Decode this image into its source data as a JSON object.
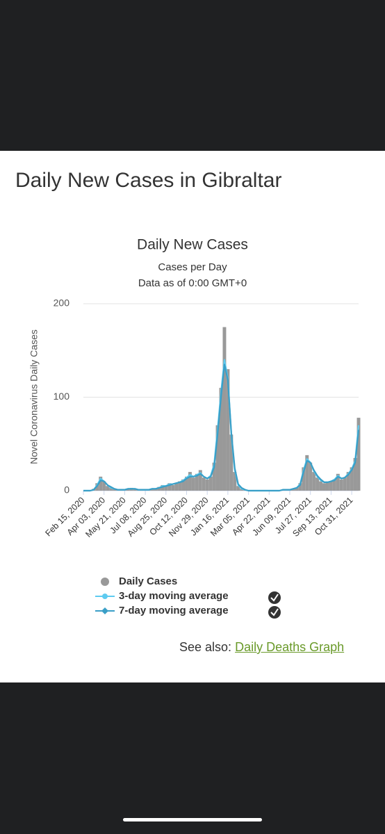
{
  "page": {
    "heading": "Daily New Cases in Gibraltar",
    "see_also": "See also:",
    "link": "Daily Deaths Graph"
  },
  "chart_data": {
    "type": "line",
    "title": "Daily New Cases",
    "subtitle": [
      "Cases per Day",
      "Data as of 0:00 GMT+0"
    ],
    "y_label": "Novel Coronavirus Daily Cases",
    "categories": [
      "Feb 15, 2020",
      null,
      null,
      null,
      null,
      null,
      "Apr 03, 2020",
      null,
      null,
      null,
      null,
      null,
      "May 21, 2020",
      null,
      null,
      null,
      null,
      null,
      "Jul 08, 2020",
      null,
      null,
      null,
      null,
      null,
      "Aug 25, 2020",
      null,
      null,
      null,
      null,
      null,
      "Oct 12, 2020",
      null,
      null,
      null,
      null,
      null,
      "Nov 29, 2020",
      null,
      null,
      null,
      null,
      null,
      "Jan 16, 2021",
      null,
      null,
      null,
      null,
      null,
      "Mar 05, 2021",
      null,
      null,
      null,
      null,
      null,
      "Apr 22, 2021",
      null,
      null,
      null,
      null,
      null,
      "Jun 09, 2021",
      null,
      null,
      null,
      null,
      null,
      "Jul 27, 2021",
      null,
      null,
      null,
      null,
      null,
      "Sep 13, 2021",
      null,
      null,
      null,
      null,
      null,
      "Oct 31, 2021",
      null,
      null
    ],
    "series": [
      {
        "name": "Daily Cases",
        "kind": "bar",
        "color": "#999999",
        "values": [
          0,
          0,
          0,
          2,
          8,
          15,
          10,
          5,
          3,
          2,
          1,
          1,
          1,
          2,
          3,
          2,
          1,
          1,
          1,
          1,
          2,
          2,
          4,
          6,
          5,
          8,
          6,
          8,
          10,
          12,
          15,
          20,
          14,
          18,
          22,
          14,
          12,
          15,
          30,
          70,
          110,
          175,
          130,
          60,
          20,
          5,
          2,
          1,
          0,
          0,
          0,
          0,
          0,
          0,
          0,
          0,
          0,
          0,
          1,
          1,
          1,
          2,
          3,
          8,
          25,
          38,
          30,
          20,
          14,
          10,
          8,
          9,
          10,
          12,
          18,
          12,
          14,
          20,
          25,
          35,
          78
        ]
      },
      {
        "name": "3-day moving average",
        "kind": "line",
        "color": "#5ecbf0",
        "values": [
          0,
          0,
          0,
          1,
          6,
          13,
          10,
          6,
          3,
          2,
          1,
          1,
          1,
          2,
          2,
          2,
          1,
          1,
          1,
          1,
          2,
          2,
          3,
          5,
          5,
          7,
          7,
          8,
          9,
          11,
          14,
          17,
          15,
          17,
          19,
          15,
          13,
          16,
          28,
          65,
          105,
          140,
          120,
          60,
          22,
          6,
          2,
          1,
          0,
          0,
          0,
          0,
          0,
          0,
          0,
          0,
          0,
          0,
          1,
          1,
          1,
          2,
          3,
          7,
          22,
          34,
          30,
          21,
          15,
          11,
          9,
          9,
          10,
          12,
          16,
          13,
          14,
          18,
          23,
          32,
          70
        ]
      },
      {
        "name": "7-day moving average",
        "kind": "line",
        "color": "#3a9fc7",
        "values": [
          0,
          0,
          0,
          1,
          5,
          11,
          10,
          6,
          4,
          2,
          1,
          1,
          1,
          2,
          2,
          2,
          1,
          1,
          1,
          1,
          2,
          2,
          3,
          4,
          5,
          6,
          7,
          8,
          9,
          10,
          13,
          15,
          15,
          16,
          18,
          15,
          13,
          15,
          25,
          60,
          100,
          135,
          118,
          62,
          24,
          7,
          3,
          1,
          0,
          0,
          0,
          0,
          0,
          0,
          0,
          0,
          0,
          0,
          1,
          1,
          1,
          2,
          3,
          6,
          20,
          32,
          30,
          22,
          16,
          12,
          9,
          9,
          10,
          11,
          15,
          13,
          14,
          17,
          22,
          30,
          65
        ]
      }
    ],
    "ylim": [
      0,
      200
    ],
    "yticks": [
      0,
      100,
      200
    ],
    "grid": true
  }
}
